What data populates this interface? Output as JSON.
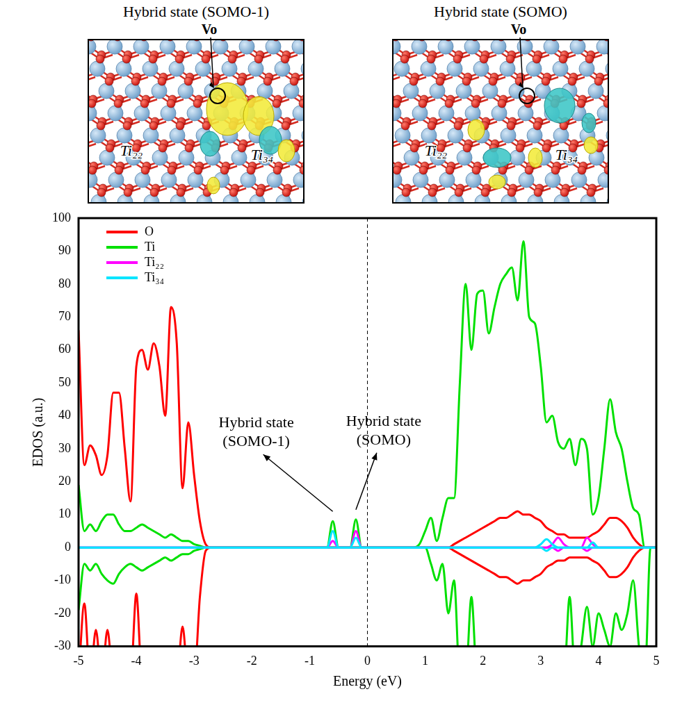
{
  "structures": [
    {
      "title": "Hybrid state (SOMO-1)",
      "vacancy": "Vo",
      "atoms": [
        "Ti₂₂",
        "Ti₃₄"
      ]
    },
    {
      "title": "Hybrid state (SOMO)",
      "vacancy": "Vo",
      "atoms": [
        "Ti₂₂",
        "Ti₃₄"
      ]
    }
  ],
  "chart_data": {
    "type": "line",
    "x_label": "Energy (eV)",
    "y_label": "EDOS (a.u.)",
    "xlim": [
      -5,
      5
    ],
    "xticks": [
      -5,
      -4,
      -3,
      -2,
      -1,
      0,
      1,
      2,
      3,
      4,
      5
    ],
    "ylim": [
      -30,
      100
    ],
    "yticks": [
      -30,
      -20,
      -10,
      0,
      10,
      20,
      30,
      40,
      50,
      60,
      70,
      80,
      90,
      100
    ],
    "grid": false,
    "legend": "upper left",
    "reference_line": {
      "x": 0,
      "line_style": "dashed"
    },
    "annotations": [
      {
        "text": "Hybrid state (SOMO-1)",
        "x": -0.6,
        "y": 8
      },
      {
        "text": "Hybrid state (SOMO)",
        "x": -0.2,
        "y": 8.5
      }
    ],
    "x": [
      -5,
      -4.9,
      -4.8,
      -4.7,
      -4.6,
      -4.5,
      -4.4,
      -4.3,
      -4.2,
      -4.1,
      -4,
      -3.9,
      -3.8,
      -3.7,
      -3.6,
      -3.5,
      -3.4,
      -3.3,
      -3.2,
      -3.1,
      -3,
      -2.9,
      -2.8,
      -2.7,
      -2.6,
      -2.5,
      -2.4,
      -2.3,
      -2.2,
      -2.1,
      -2,
      -1.9,
      -1.8,
      -1.7,
      -1.6,
      -1.5,
      -1.4,
      -1.3,
      -1.2,
      -1.1,
      -1,
      -0.9,
      -0.8,
      -0.7,
      -0.6,
      -0.5,
      -0.4,
      -0.3,
      -0.2,
      -0.1,
      0,
      0.1,
      0.2,
      0.3,
      0.4,
      0.5,
      0.6,
      0.7,
      0.8,
      0.9,
      1,
      1.1,
      1.2,
      1.3,
      1.4,
      1.5,
      1.6,
      1.7,
      1.8,
      1.9,
      2,
      2.1,
      2.2,
      2.3,
      2.4,
      2.5,
      2.6,
      2.7,
      2.8,
      2.9,
      3,
      3.1,
      3.2,
      3.3,
      3.4,
      3.5,
      3.6,
      3.7,
      3.8,
      3.9,
      4,
      4.1,
      4.2,
      4.3,
      4.4,
      4.5,
      4.6,
      4.7,
      4.8,
      4.9,
      5
    ],
    "series": [
      {
        "name": "O",
        "color": "#ff0000",
        "values": [
          66,
          25,
          31,
          28,
          22,
          28,
          47,
          47,
          30,
          14,
          55,
          60,
          54,
          62,
          55,
          40,
          73,
          62,
          18,
          38,
          22,
          8,
          1,
          0,
          0,
          0,
          0,
          0,
          0,
          0,
          0,
          0,
          0,
          0,
          0,
          0,
          0,
          0,
          0,
          0,
          0,
          0,
          0,
          0,
          0,
          0,
          0,
          0,
          0,
          0,
          0,
          0,
          0,
          0,
          0,
          0,
          0,
          0,
          0,
          0,
          0,
          0,
          0,
          0,
          0,
          1,
          2,
          3,
          4,
          5,
          6,
          7,
          8,
          9,
          9,
          10,
          11,
          10,
          10,
          9,
          8,
          6,
          5,
          4,
          4,
          3,
          3,
          3,
          3,
          4,
          5,
          7,
          9,
          9,
          8,
          6,
          3,
          1,
          0,
          0,
          0
        ],
        "values_down": [
          -40,
          -17,
          -40,
          -25,
          -40,
          -25,
          -40,
          -40,
          -40,
          -40,
          -14,
          -40,
          -40,
          -40,
          -40,
          -40,
          -40,
          -40,
          -24,
          -40,
          -40,
          -15,
          -1,
          0,
          0,
          0,
          0,
          0,
          0,
          0,
          0,
          0,
          0,
          0,
          0,
          0,
          0,
          0,
          0,
          0,
          0,
          0,
          0,
          0,
          0,
          0,
          0,
          0,
          0,
          0,
          0,
          0,
          0,
          0,
          0,
          0,
          0,
          0,
          0,
          0,
          0,
          0,
          0,
          0,
          0,
          -1,
          -2,
          -3,
          -4,
          -5,
          -6,
          -7,
          -8,
          -9,
          -9,
          -10,
          -11,
          -10,
          -10,
          -9,
          -8,
          -6,
          -5,
          -4,
          -4,
          -3,
          -3,
          -3,
          -3,
          -4,
          -5,
          -7,
          -9,
          -9,
          -8,
          -6,
          -3,
          -1,
          0,
          0,
          0
        ]
      },
      {
        "name": "Ti",
        "color": "#00e000",
        "values": [
          19,
          5,
          7,
          5,
          8,
          10,
          10,
          7,
          5,
          5,
          6,
          7,
          6,
          5,
          4,
          3,
          4,
          3,
          2,
          2,
          1,
          0.5,
          0,
          0,
          0,
          0,
          0,
          0,
          0,
          0,
          0,
          0,
          0,
          0,
          0,
          0,
          0,
          0,
          0,
          0,
          0,
          0,
          0,
          0,
          8,
          0,
          0,
          0,
          8.5,
          0,
          0,
          0,
          0,
          0,
          0,
          0,
          0,
          0,
          0,
          1,
          5,
          9,
          2,
          9,
          15,
          15,
          50,
          80,
          60,
          77,
          78,
          65,
          73,
          80,
          83,
          85,
          75,
          93,
          70,
          68,
          55,
          38,
          40,
          32,
          30,
          33,
          25,
          33,
          30,
          10,
          15,
          30,
          45,
          35,
          30,
          20,
          12,
          10,
          0,
          0,
          0
        ],
        "values_down": [
          -19,
          -5,
          -7,
          -5,
          -8,
          -10,
          -11,
          -8,
          -6,
          -5,
          -6,
          -7,
          -6,
          -5,
          -4,
          -3,
          -4,
          -3,
          -2,
          -2,
          -1,
          -0.5,
          0,
          0,
          0,
          0,
          0,
          0,
          0,
          0,
          0,
          0,
          0,
          0,
          0,
          0,
          0,
          0,
          0,
          0,
          0,
          0,
          0,
          0,
          0,
          0,
          0,
          0,
          0,
          0,
          0,
          0,
          0,
          0,
          0,
          0,
          0,
          0,
          0,
          0,
          0,
          -5,
          -10,
          -5,
          -20,
          -10,
          -40,
          -40,
          -15,
          -40,
          -40,
          -40,
          -40,
          -40,
          -40,
          -40,
          -40,
          -40,
          -40,
          -40,
          -40,
          -40,
          -40,
          -40,
          -40,
          -15,
          -40,
          -30,
          -18,
          -30,
          -20,
          -25,
          -30,
          -20,
          -25,
          -20,
          -10,
          -30,
          -40,
          0,
          0
        ]
      },
      {
        "name": "Ti₂₂",
        "color": "#ff00ff",
        "values": [
          0,
          0,
          0,
          0,
          0,
          0,
          0,
          0,
          0,
          0,
          0,
          0,
          0,
          0,
          0,
          0,
          0,
          0,
          0,
          0,
          0,
          0,
          0,
          0,
          0,
          0,
          0,
          0,
          0,
          0,
          0,
          0,
          0,
          0,
          0,
          0,
          0,
          0,
          0,
          0,
          0,
          0,
          0,
          0,
          2,
          0,
          0,
          0,
          5,
          0,
          0,
          0,
          0,
          0,
          0,
          0,
          0,
          0,
          0,
          0,
          0,
          0,
          0,
          0,
          0,
          0,
          0,
          0,
          0,
          0,
          0,
          0,
          0,
          0,
          0,
          0,
          0,
          0,
          0,
          0,
          0,
          0,
          1,
          3,
          1,
          0,
          0,
          0,
          3,
          1,
          0,
          0,
          0,
          0,
          0,
          0,
          0,
          0,
          0,
          0,
          0
        ],
        "values_down": [
          0,
          0,
          0,
          0,
          0,
          0,
          0,
          0,
          0,
          0,
          0,
          0,
          0,
          0,
          0,
          0,
          0,
          0,
          0,
          0,
          0,
          0,
          0,
          0,
          0,
          0,
          0,
          0,
          0,
          0,
          0,
          0,
          0,
          0,
          0,
          0,
          0,
          0,
          0,
          0,
          0,
          0,
          0,
          0,
          0,
          0,
          0,
          0,
          0,
          0,
          0,
          0,
          0,
          0,
          0,
          0,
          0,
          0,
          0,
          0,
          0,
          0,
          0,
          0,
          0,
          0,
          0,
          0,
          0,
          0,
          0,
          0,
          0,
          0,
          0,
          0,
          0,
          0,
          0,
          0,
          0,
          0,
          0,
          -1,
          0,
          0,
          0,
          0,
          -1,
          0,
          0,
          0,
          0,
          0,
          0,
          0,
          0,
          0,
          0,
          0,
          0
        ]
      },
      {
        "name": "Ti₃₄",
        "color": "#00e5ff",
        "values": [
          0,
          0,
          0,
          0,
          0,
          0,
          0,
          0,
          0,
          0,
          0,
          0,
          0,
          0,
          0,
          0,
          0,
          0,
          0,
          0,
          0,
          0,
          0,
          0,
          0,
          0,
          0,
          0,
          0,
          0,
          0,
          0,
          0,
          0,
          0,
          0,
          0,
          0,
          0,
          0,
          0,
          0,
          0,
          0,
          5,
          0,
          0,
          0,
          3,
          0,
          0,
          0,
          0,
          0,
          0,
          0,
          0,
          0,
          0,
          0,
          0,
          0,
          0,
          0,
          0,
          0,
          0,
          0,
          0,
          0,
          0,
          0,
          0,
          0,
          0,
          0,
          0,
          0,
          0,
          0,
          1,
          2.5,
          1,
          0,
          0,
          0,
          0,
          0,
          0,
          1.5,
          0,
          0,
          0,
          0,
          0,
          0,
          0,
          0,
          0,
          0,
          0
        ],
        "values_down": [
          0,
          0,
          0,
          0,
          0,
          0,
          0,
          0,
          0,
          0,
          0,
          0,
          0,
          0,
          0,
          0,
          0,
          0,
          0,
          0,
          0,
          0,
          0,
          0,
          0,
          0,
          0,
          0,
          0,
          0,
          0,
          0,
          0,
          0,
          0,
          0,
          0,
          0,
          0,
          0,
          0,
          0,
          0,
          0,
          0,
          0,
          0,
          0,
          0,
          0,
          0,
          0,
          0,
          0,
          0,
          0,
          0,
          0,
          0,
          0,
          0,
          0,
          0,
          0,
          0,
          0,
          0,
          0,
          0,
          0,
          0,
          0,
          0,
          0,
          0,
          0,
          0,
          0,
          0,
          0,
          0,
          -1,
          0,
          0,
          0,
          0,
          0,
          0,
          0,
          0,
          0,
          0,
          0,
          0,
          0,
          0,
          0,
          0,
          0,
          0,
          0
        ]
      }
    ]
  }
}
